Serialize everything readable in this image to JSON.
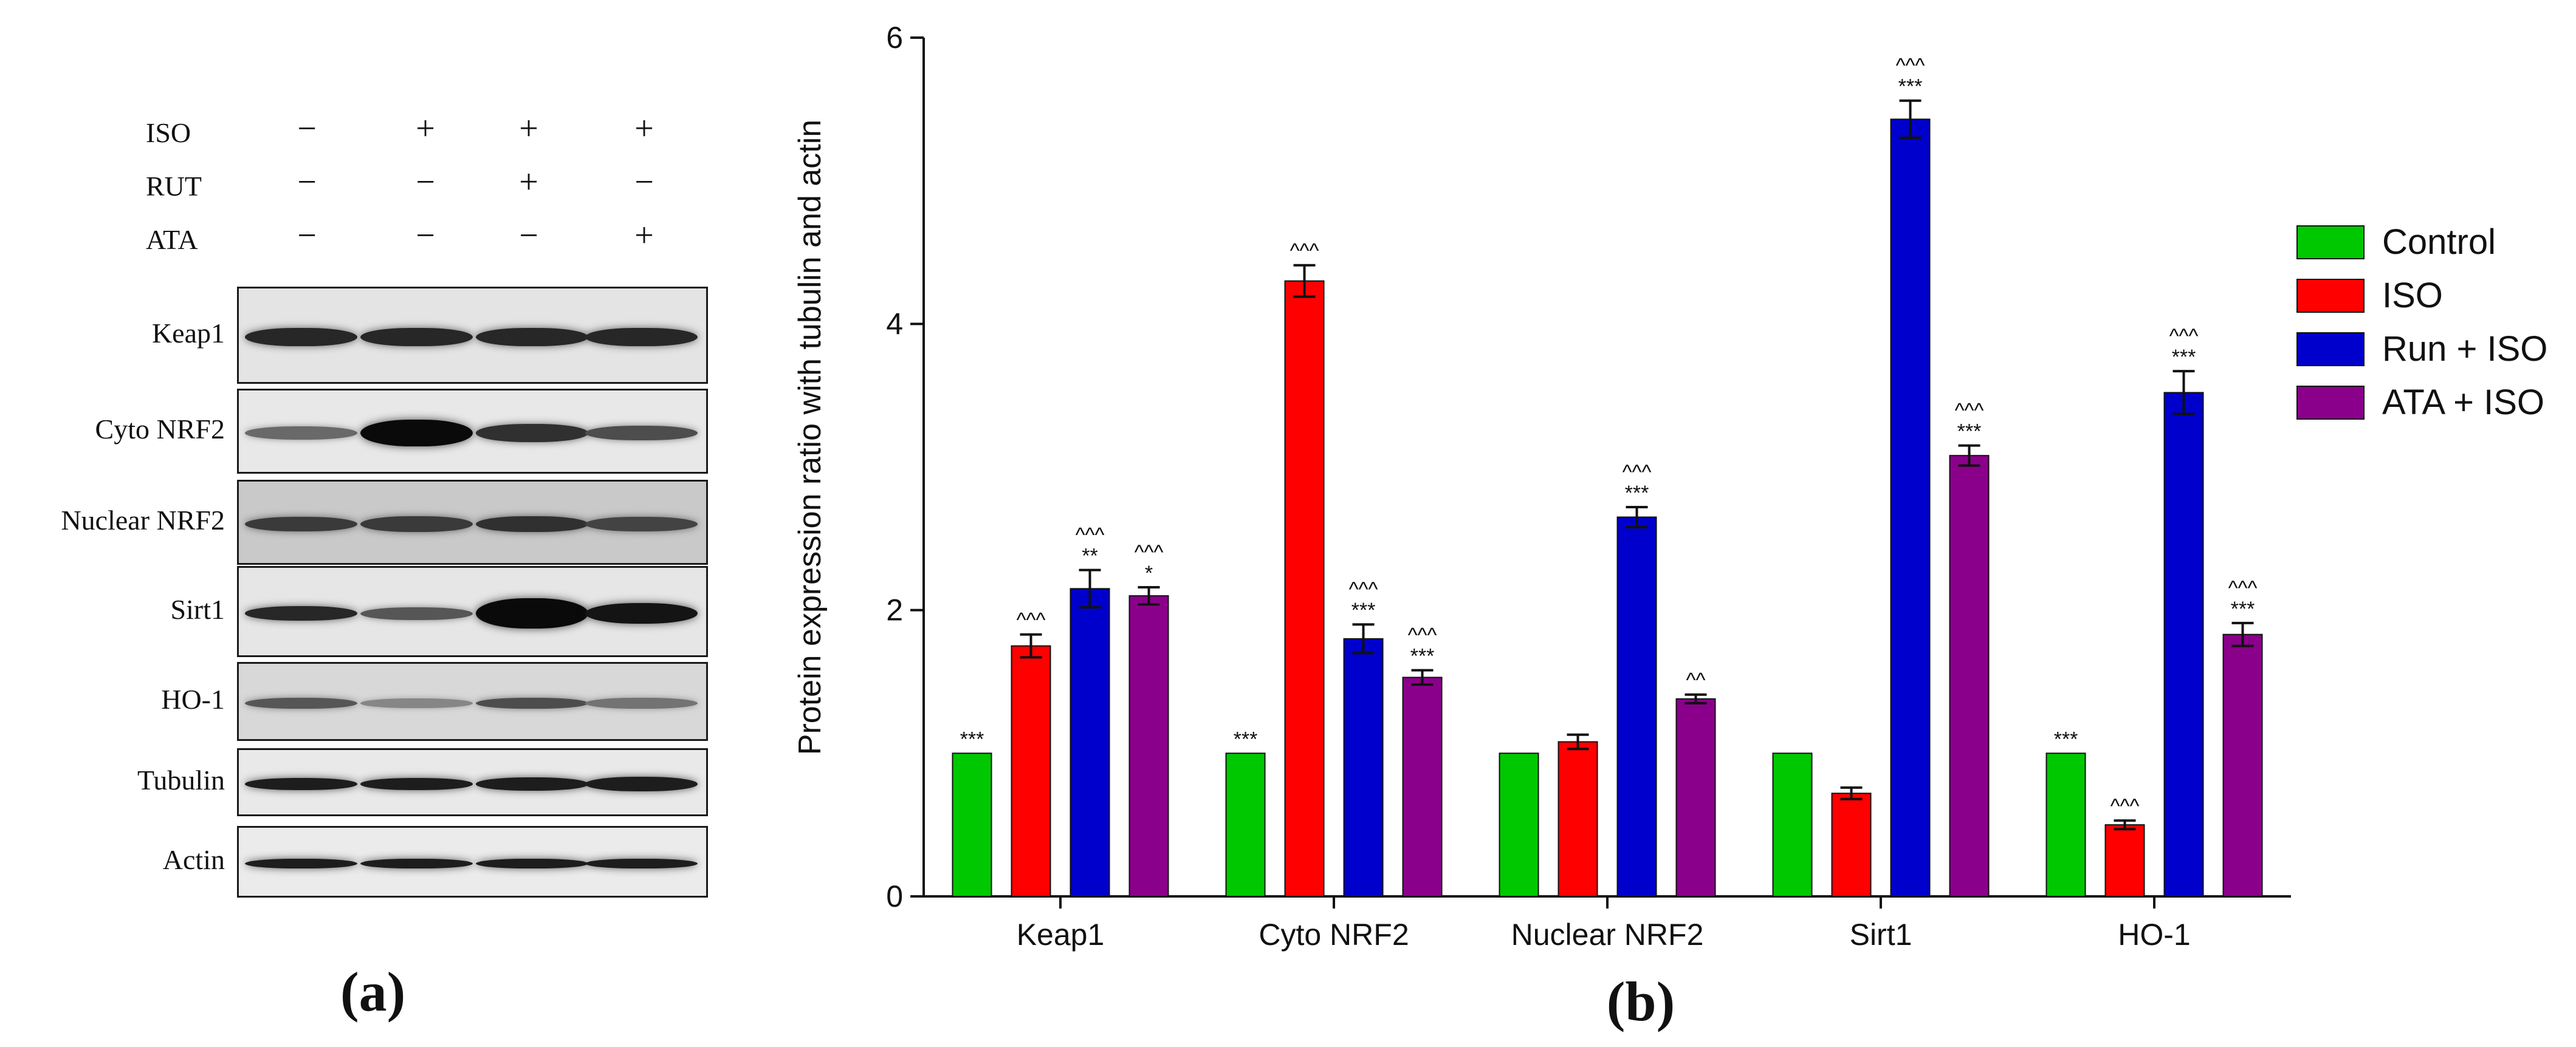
{
  "panel_a": {
    "letter": "(a)",
    "lane_count": 4,
    "treatments": [
      {
        "label": "ISO",
        "signs": [
          "−",
          "+",
          "+",
          "+"
        ]
      },
      {
        "label": "RUT",
        "signs": [
          "−",
          "−",
          "+",
          "−"
        ]
      },
      {
        "label": "ATA",
        "signs": [
          "−",
          "−",
          "−",
          "+"
        ]
      }
    ],
    "blots": [
      {
        "label": "Keap1",
        "background": "#e4e4e4",
        "band_intensity": [
          0.85,
          0.85,
          0.85,
          0.85
        ],
        "band_height": [
          0.55,
          0.55,
          0.55,
          0.55
        ]
      },
      {
        "label": "Cyto NRF2",
        "background": "#e8e8e8",
        "band_intensity": [
          0.5,
          1.0,
          0.8,
          0.65
        ],
        "band_height": [
          0.45,
          0.9,
          0.6,
          0.5
        ]
      },
      {
        "label": "Nuclear NRF2",
        "background": "#c9c9c9",
        "band_intensity": [
          0.75,
          0.75,
          0.8,
          0.7
        ],
        "band_height": [
          0.5,
          0.55,
          0.55,
          0.5
        ]
      },
      {
        "label": "Sirt1",
        "background": "#e6e6e6",
        "band_intensity": [
          0.85,
          0.6,
          1.0,
          0.95
        ],
        "band_height": [
          0.45,
          0.4,
          0.95,
          0.65
        ]
      },
      {
        "label": "HO-1",
        "background": "#d8d8d8",
        "band_intensity": [
          0.6,
          0.35,
          0.65,
          0.45
        ],
        "band_height": [
          0.4,
          0.35,
          0.4,
          0.4
        ]
      },
      {
        "label": "Tubulin",
        "background": "#e9e9e9",
        "band_intensity": [
          0.9,
          0.9,
          0.9,
          0.9
        ],
        "band_height": [
          0.5,
          0.5,
          0.55,
          0.6
        ]
      },
      {
        "label": "Actin",
        "background": "#ebebeb",
        "band_intensity": [
          0.9,
          0.9,
          0.9,
          0.9
        ],
        "band_height": [
          0.4,
          0.4,
          0.4,
          0.4
        ]
      }
    ]
  },
  "panel_b": {
    "letter": "(b)"
  },
  "chart_data": {
    "type": "bar",
    "title": "",
    "xlabel": "",
    "ylabel": "Protein expression ratio with tubulin and actin",
    "ylim": [
      0,
      6
    ],
    "yticks": [
      "0",
      "2",
      "4",
      "6"
    ],
    "grid": false,
    "legend_position": "right",
    "categories": [
      "Keap1",
      "Cyto NRF2",
      "Nuclear NRF2",
      "Sirt1",
      "HO-1"
    ],
    "series": [
      {
        "name": "Control",
        "color": "#00c800",
        "values": [
          1.0,
          1.0,
          1.0,
          1.0,
          1.0
        ],
        "errors": [
          0,
          0,
          0,
          0,
          0
        ],
        "labels": [
          "***",
          "***",
          "",
          "",
          "***"
        ]
      },
      {
        "name": "ISO",
        "color": "#ff0000",
        "values": [
          1.75,
          4.3,
          1.08,
          0.72,
          0.5
        ],
        "errors": [
          0.08,
          0.11,
          0.05,
          0.04,
          0.03
        ],
        "labels": [
          "^^^",
          "^^^",
          "",
          "",
          "^^^"
        ]
      },
      {
        "name": "Run + ISO",
        "color": "#0000cc",
        "values": [
          2.15,
          1.8,
          2.65,
          5.43,
          3.52
        ],
        "errors": [
          0.13,
          0.1,
          0.07,
          0.13,
          0.15
        ],
        "labels": [
          "^^^\n**",
          "^^^\n***",
          "^^^\n***",
          "^^^\n***",
          "^^^\n***"
        ]
      },
      {
        "name": "ATA + ISO",
        "color": "#8b008b",
        "values": [
          2.1,
          1.53,
          1.38,
          3.08,
          1.83
        ],
        "errors": [
          0.06,
          0.05,
          0.03,
          0.07,
          0.08
        ],
        "labels": [
          "^^^\n*",
          "^^^\n***",
          "^^",
          "^^^\n***",
          "^^^\n***"
        ]
      }
    ]
  }
}
